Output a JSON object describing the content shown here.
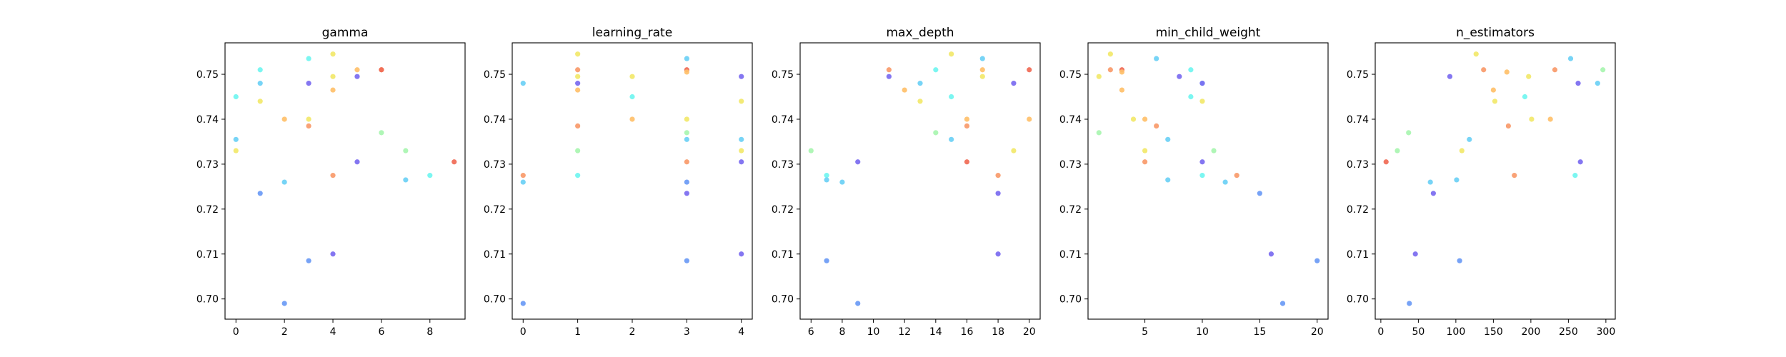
{
  "colors": {
    "c1": "#7a6af0",
    "c2": "#6a9af5",
    "c3": "#6bd0f5",
    "c4": "#70f5f0",
    "c5": "#a8f5b0",
    "c6": "#f2e86a",
    "c7": "#ffc06a",
    "c8": "#f89a6a",
    "c9": "#f06a55"
  },
  "chart_data": [
    {
      "type": "scatter",
      "title": "gamma",
      "xlim": [
        -0.45,
        9.45
      ],
      "ylim": [
        0.6955,
        0.757
      ],
      "xticks": [
        0,
        2,
        4,
        6,
        8
      ],
      "yticks": [
        0.7,
        0.71,
        0.72,
        0.73,
        0.74,
        0.75
      ],
      "points": [
        {
          "x": 0,
          "y": 0.745,
          "c": "c4"
        },
        {
          "x": 0,
          "y": 0.7355,
          "c": "c3"
        },
        {
          "x": 0,
          "y": 0.733,
          "c": "c6"
        },
        {
          "x": 1,
          "y": 0.751,
          "c": "c4"
        },
        {
          "x": 1,
          "y": 0.748,
          "c": "c3"
        },
        {
          "x": 1,
          "y": 0.744,
          "c": "c6"
        },
        {
          "x": 1,
          "y": 0.7235,
          "c": "c2"
        },
        {
          "x": 2,
          "y": 0.74,
          "c": "c7"
        },
        {
          "x": 2,
          "y": 0.726,
          "c": "c3"
        },
        {
          "x": 2,
          "y": 0.699,
          "c": "c2"
        },
        {
          "x": 3,
          "y": 0.7535,
          "c": "c4"
        },
        {
          "x": 3,
          "y": 0.748,
          "c": "c1"
        },
        {
          "x": 3,
          "y": 0.74,
          "c": "c6"
        },
        {
          "x": 3,
          "y": 0.7385,
          "c": "c8"
        },
        {
          "x": 3,
          "y": 0.7085,
          "c": "c2"
        },
        {
          "x": 4,
          "y": 0.7545,
          "c": "c6"
        },
        {
          "x": 4,
          "y": 0.7495,
          "c": "c6"
        },
        {
          "x": 4,
          "y": 0.7465,
          "c": "c7"
        },
        {
          "x": 4,
          "y": 0.7275,
          "c": "c8"
        },
        {
          "x": 4,
          "y": 0.71,
          "c": "c1"
        },
        {
          "x": 5,
          "y": 0.751,
          "c": "c7"
        },
        {
          "x": 5,
          "y": 0.7495,
          "c": "c1"
        },
        {
          "x": 5,
          "y": 0.7305,
          "c": "c1"
        },
        {
          "x": 6,
          "y": 0.751,
          "c": "c8"
        },
        {
          "x": 6,
          "y": 0.751,
          "c": "c9"
        },
        {
          "x": 6,
          "y": 0.737,
          "c": "c5"
        },
        {
          "x": 7,
          "y": 0.733,
          "c": "c5"
        },
        {
          "x": 7,
          "y": 0.7265,
          "c": "c3"
        },
        {
          "x": 8,
          "y": 0.7275,
          "c": "c4"
        },
        {
          "x": 9,
          "y": 0.7305,
          "c": "c9"
        }
      ]
    },
    {
      "type": "scatter",
      "title": "learning_rate",
      "xlim": [
        -0.2,
        4.2
      ],
      "ylim": [
        0.6955,
        0.757
      ],
      "xticks": [
        0,
        1,
        2,
        3,
        4
      ],
      "yticks": [
        0.7,
        0.71,
        0.72,
        0.73,
        0.74,
        0.75
      ],
      "points": [
        {
          "x": 0,
          "y": 0.748,
          "c": "c3"
        },
        {
          "x": 0,
          "y": 0.7275,
          "c": "c8"
        },
        {
          "x": 0,
          "y": 0.726,
          "c": "c3"
        },
        {
          "x": 0,
          "y": 0.699,
          "c": "c2"
        },
        {
          "x": 1,
          "y": 0.7545,
          "c": "c6"
        },
        {
          "x": 1,
          "y": 0.751,
          "c": "c8"
        },
        {
          "x": 1,
          "y": 0.7495,
          "c": "c6"
        },
        {
          "x": 1,
          "y": 0.748,
          "c": "c1"
        },
        {
          "x": 1,
          "y": 0.7465,
          "c": "c7"
        },
        {
          "x": 1,
          "y": 0.7385,
          "c": "c8"
        },
        {
          "x": 1,
          "y": 0.733,
          "c": "c5"
        },
        {
          "x": 1,
          "y": 0.7275,
          "c": "c4"
        },
        {
          "x": 2,
          "y": 0.7495,
          "c": "c6"
        },
        {
          "x": 2,
          "y": 0.745,
          "c": "c4"
        },
        {
          "x": 2,
          "y": 0.74,
          "c": "c7"
        },
        {
          "x": 3,
          "y": 0.7535,
          "c": "c3"
        },
        {
          "x": 3,
          "y": 0.751,
          "c": "c9"
        },
        {
          "x": 3,
          "y": 0.7505,
          "c": "c7"
        },
        {
          "x": 3,
          "y": 0.74,
          "c": "c6"
        },
        {
          "x": 3,
          "y": 0.737,
          "c": "c5"
        },
        {
          "x": 3,
          "y": 0.7355,
          "c": "c3"
        },
        {
          "x": 3,
          "y": 0.7305,
          "c": "c8"
        },
        {
          "x": 3,
          "y": 0.726,
          "c": "c2"
        },
        {
          "x": 3,
          "y": 0.7235,
          "c": "c1"
        },
        {
          "x": 3,
          "y": 0.7085,
          "c": "c2"
        },
        {
          "x": 4,
          "y": 0.7495,
          "c": "c1"
        },
        {
          "x": 4,
          "y": 0.744,
          "c": "c6"
        },
        {
          "x": 4,
          "y": 0.7355,
          "c": "c3"
        },
        {
          "x": 4,
          "y": 0.733,
          "c": "c6"
        },
        {
          "x": 4,
          "y": 0.7305,
          "c": "c1"
        },
        {
          "x": 4,
          "y": 0.71,
          "c": "c1"
        }
      ]
    },
    {
      "type": "scatter",
      "title": "max_depth",
      "xlim": [
        5.3,
        20.7
      ],
      "ylim": [
        0.6955,
        0.757
      ],
      "xticks": [
        6,
        8,
        10,
        12,
        14,
        16,
        18,
        20
      ],
      "yticks": [
        0.7,
        0.71,
        0.72,
        0.73,
        0.74,
        0.75
      ],
      "points": [
        {
          "x": 6,
          "y": 0.733,
          "c": "c5"
        },
        {
          "x": 7,
          "y": 0.7275,
          "c": "c4"
        },
        {
          "x": 7,
          "y": 0.7265,
          "c": "c3"
        },
        {
          "x": 7,
          "y": 0.7085,
          "c": "c2"
        },
        {
          "x": 8,
          "y": 0.726,
          "c": "c3"
        },
        {
          "x": 9,
          "y": 0.7305,
          "c": "c1"
        },
        {
          "x": 9,
          "y": 0.699,
          "c": "c2"
        },
        {
          "x": 11,
          "y": 0.751,
          "c": "c8"
        },
        {
          "x": 11,
          "y": 0.7495,
          "c": "c1"
        },
        {
          "x": 12,
          "y": 0.7465,
          "c": "c7"
        },
        {
          "x": 13,
          "y": 0.748,
          "c": "c3"
        },
        {
          "x": 13,
          "y": 0.744,
          "c": "c6"
        },
        {
          "x": 14,
          "y": 0.751,
          "c": "c4"
        },
        {
          "x": 14,
          "y": 0.737,
          "c": "c5"
        },
        {
          "x": 15,
          "y": 0.7545,
          "c": "c6"
        },
        {
          "x": 15,
          "y": 0.745,
          "c": "c4"
        },
        {
          "x": 15,
          "y": 0.7355,
          "c": "c3"
        },
        {
          "x": 16,
          "y": 0.74,
          "c": "c7"
        },
        {
          "x": 16,
          "y": 0.7385,
          "c": "c8"
        },
        {
          "x": 16,
          "y": 0.7305,
          "c": "c9"
        },
        {
          "x": 17,
          "y": 0.7535,
          "c": "c3"
        },
        {
          "x": 17,
          "y": 0.751,
          "c": "c7"
        },
        {
          "x": 17,
          "y": 0.7495,
          "c": "c6"
        },
        {
          "x": 18,
          "y": 0.7275,
          "c": "c8"
        },
        {
          "x": 18,
          "y": 0.7235,
          "c": "c1"
        },
        {
          "x": 18,
          "y": 0.71,
          "c": "c1"
        },
        {
          "x": 19,
          "y": 0.748,
          "c": "c1"
        },
        {
          "x": 19,
          "y": 0.733,
          "c": "c6"
        },
        {
          "x": 20,
          "y": 0.751,
          "c": "c9"
        },
        {
          "x": 20,
          "y": 0.74,
          "c": "c7"
        }
      ]
    },
    {
      "type": "scatter",
      "title": "min_child_weight",
      "xlim": [
        0.05,
        20.95
      ],
      "ylim": [
        0.6955,
        0.757
      ],
      "xticks": [
        5,
        10,
        15,
        20
      ],
      "yticks": [
        0.7,
        0.71,
        0.72,
        0.73,
        0.74,
        0.75
      ],
      "points": [
        {
          "x": 1,
          "y": 0.7495,
          "c": "c6"
        },
        {
          "x": 1,
          "y": 0.737,
          "c": "c5"
        },
        {
          "x": 2,
          "y": 0.7545,
          "c": "c6"
        },
        {
          "x": 2,
          "y": 0.751,
          "c": "c8"
        },
        {
          "x": 3,
          "y": 0.751,
          "c": "c9"
        },
        {
          "x": 3,
          "y": 0.7505,
          "c": "c7"
        },
        {
          "x": 3,
          "y": 0.7465,
          "c": "c7"
        },
        {
          "x": 4,
          "y": 0.74,
          "c": "c6"
        },
        {
          "x": 5,
          "y": 0.74,
          "c": "c7"
        },
        {
          "x": 5,
          "y": 0.733,
          "c": "c6"
        },
        {
          "x": 5,
          "y": 0.7305,
          "c": "c8"
        },
        {
          "x": 6,
          "y": 0.7535,
          "c": "c3"
        },
        {
          "x": 6,
          "y": 0.7385,
          "c": "c8"
        },
        {
          "x": 7,
          "y": 0.7355,
          "c": "c3"
        },
        {
          "x": 7,
          "y": 0.7265,
          "c": "c3"
        },
        {
          "x": 8,
          "y": 0.7495,
          "c": "c1"
        },
        {
          "x": 9,
          "y": 0.751,
          "c": "c4"
        },
        {
          "x": 9,
          "y": 0.745,
          "c": "c4"
        },
        {
          "x": 10,
          "y": 0.748,
          "c": "c3"
        },
        {
          "x": 10,
          "y": 0.748,
          "c": "c1"
        },
        {
          "x": 10,
          "y": 0.744,
          "c": "c6"
        },
        {
          "x": 10,
          "y": 0.7305,
          "c": "c1"
        },
        {
          "x": 10,
          "y": 0.7275,
          "c": "c4"
        },
        {
          "x": 11,
          "y": 0.733,
          "c": "c5"
        },
        {
          "x": 12,
          "y": 0.726,
          "c": "c3"
        },
        {
          "x": 13,
          "y": 0.7275,
          "c": "c8"
        },
        {
          "x": 15,
          "y": 0.7235,
          "c": "c2"
        },
        {
          "x": 16,
          "y": 0.71,
          "c": "c1"
        },
        {
          "x": 17,
          "y": 0.699,
          "c": "c2"
        },
        {
          "x": 20,
          "y": 0.7085,
          "c": "c2"
        }
      ]
    },
    {
      "type": "scatter",
      "title": "n_estimators",
      "xlim": [
        -7.5,
        312.5
      ],
      "ylim": [
        0.6955,
        0.757
      ],
      "xticks": [
        0,
        50,
        100,
        150,
        200,
        250,
        300
      ],
      "yticks": [
        0.7,
        0.71,
        0.72,
        0.73,
        0.74,
        0.75
      ],
      "points": [
        {
          "x": 7,
          "y": 0.7305,
          "c": "c9"
        },
        {
          "x": 22,
          "y": 0.733,
          "c": "c5"
        },
        {
          "x": 37,
          "y": 0.737,
          "c": "c5"
        },
        {
          "x": 38,
          "y": 0.699,
          "c": "c2"
        },
        {
          "x": 46,
          "y": 0.71,
          "c": "c1"
        },
        {
          "x": 66,
          "y": 0.726,
          "c": "c3"
        },
        {
          "x": 70,
          "y": 0.7235,
          "c": "c1"
        },
        {
          "x": 92,
          "y": 0.7495,
          "c": "c1"
        },
        {
          "x": 101,
          "y": 0.7265,
          "c": "c3"
        },
        {
          "x": 105,
          "y": 0.7085,
          "c": "c2"
        },
        {
          "x": 108,
          "y": 0.733,
          "c": "c6"
        },
        {
          "x": 118,
          "y": 0.7355,
          "c": "c3"
        },
        {
          "x": 127,
          "y": 0.7545,
          "c": "c6"
        },
        {
          "x": 137,
          "y": 0.751,
          "c": "c8"
        },
        {
          "x": 150,
          "y": 0.7465,
          "c": "c7"
        },
        {
          "x": 152,
          "y": 0.744,
          "c": "c6"
        },
        {
          "x": 168,
          "y": 0.7505,
          "c": "c7"
        },
        {
          "x": 170,
          "y": 0.7385,
          "c": "c8"
        },
        {
          "x": 178,
          "y": 0.7275,
          "c": "c8"
        },
        {
          "x": 192,
          "y": 0.745,
          "c": "c4"
        },
        {
          "x": 197,
          "y": 0.7495,
          "c": "c6"
        },
        {
          "x": 201,
          "y": 0.74,
          "c": "c6"
        },
        {
          "x": 226,
          "y": 0.74,
          "c": "c7"
        },
        {
          "x": 232,
          "y": 0.751,
          "c": "c8"
        },
        {
          "x": 253,
          "y": 0.7535,
          "c": "c3"
        },
        {
          "x": 259,
          "y": 0.7275,
          "c": "c4"
        },
        {
          "x": 263,
          "y": 0.748,
          "c": "c1"
        },
        {
          "x": 266,
          "y": 0.7305,
          "c": "c1"
        },
        {
          "x": 289,
          "y": 0.748,
          "c": "c3"
        },
        {
          "x": 296,
          "y": 0.751,
          "c": "c5"
        }
      ]
    }
  ]
}
